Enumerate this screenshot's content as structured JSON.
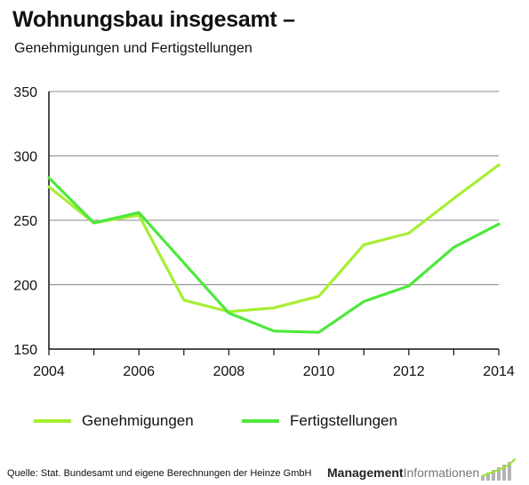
{
  "header": {
    "title": "Wohnungsbau insgesamt –",
    "subtitle": "Genehmigungen und Fertigstellungen"
  },
  "chart_data": {
    "type": "line",
    "title": "Wohnungsbau insgesamt –",
    "subtitle": "Genehmigungen und Fertigstellungen",
    "xlabel": "",
    "ylabel": "",
    "x": [
      2004,
      2005,
      2006,
      2007,
      2008,
      2009,
      2010,
      2011,
      2012,
      2013,
      2014
    ],
    "xticks": [
      "2004",
      "2006",
      "2008",
      "2010",
      "2012",
      "2014"
    ],
    "yticks": [
      "150",
      "200",
      "250",
      "300",
      "350"
    ],
    "xlim": [
      2004,
      2014
    ],
    "ylim": [
      150,
      350
    ],
    "grid": "horizontal",
    "legend_position": "bottom",
    "series": [
      {
        "name": "Genehmigungen",
        "color": "#a6ef34",
        "values": [
          276,
          248,
          254,
          188,
          179,
          182,
          191,
          231,
          240,
          267,
          293
        ]
      },
      {
        "name": "Fertigstellungen",
        "color": "#4ee83c",
        "values": [
          283,
          248,
          256,
          217,
          178,
          164,
          163,
          187,
          199,
          229,
          247
        ]
      }
    ]
  },
  "footer": {
    "source": "Quelle: Stat. Bundesamt und eigene Berechnungen der Heinze GmbH",
    "brand_bold": "Management",
    "brand_light": "Informationen"
  },
  "colors": {
    "axis": "#111111",
    "grid": "#8a8a8a",
    "logo_bars": "#b3b3b3",
    "logo_accent": "#9be33a"
  }
}
